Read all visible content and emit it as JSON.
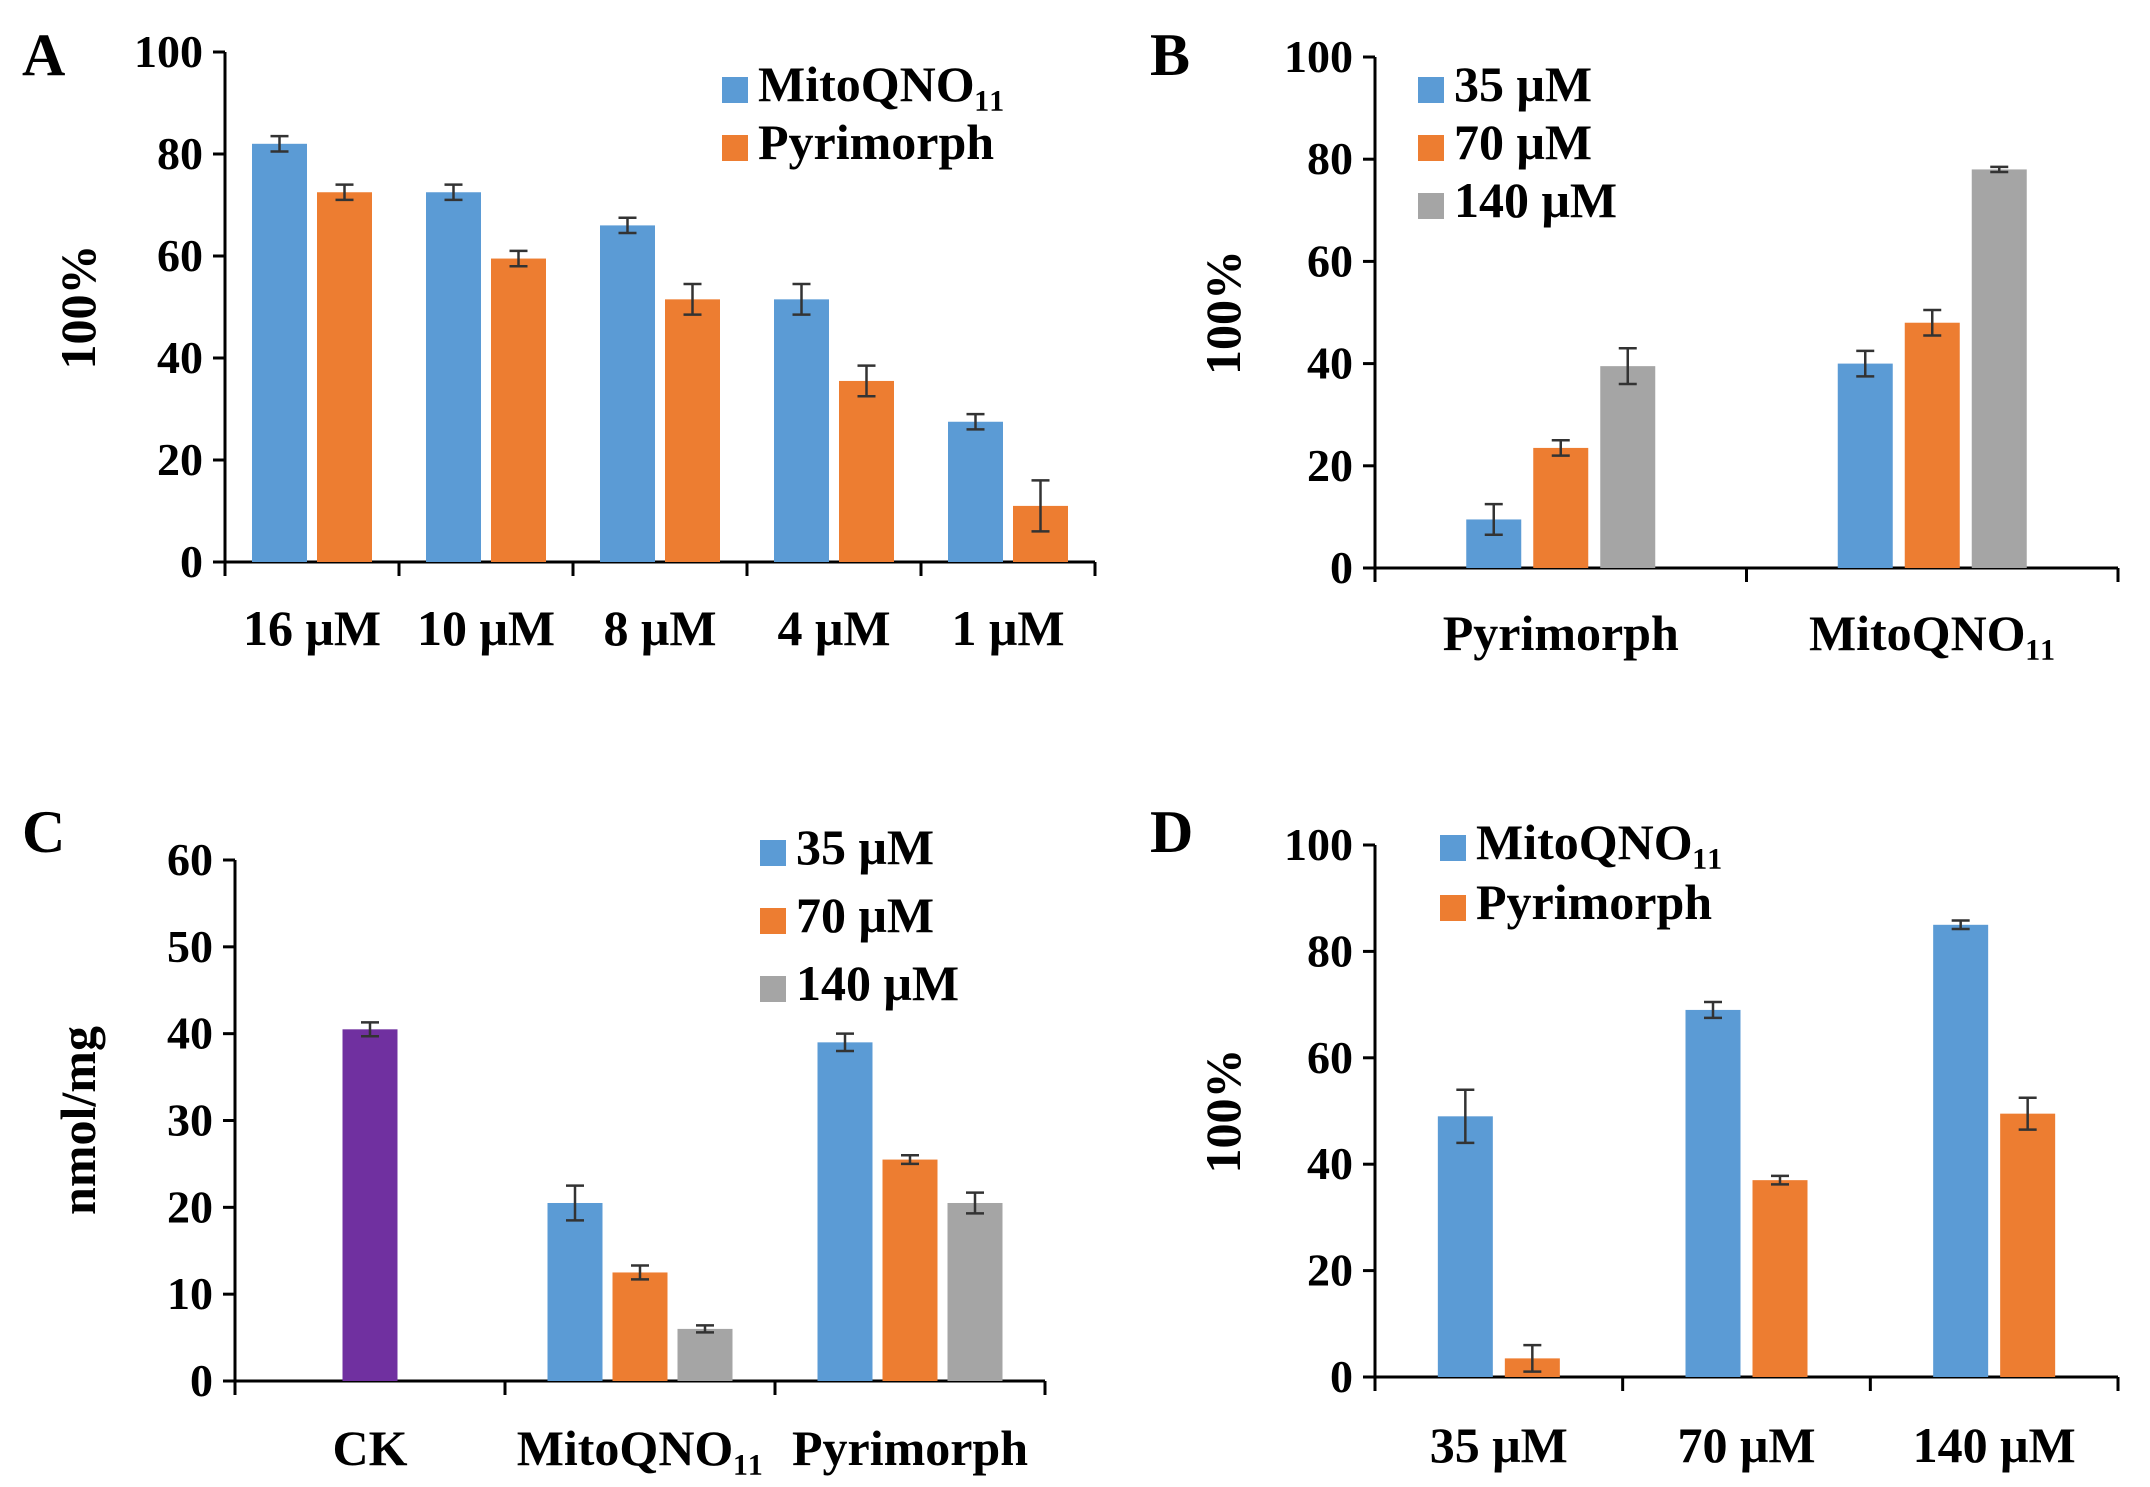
{
  "figure": {
    "colors": {
      "blue": "#5B9BD5",
      "orange": "#ED7D31",
      "gray": "#A5A5A5",
      "purple": "#7030A0",
      "axis": "#000000",
      "error_bar": "#333333"
    }
  },
  "chart_data": [
    {
      "panel": "A",
      "type": "bar",
      "ylabel": "100%",
      "xlabel": "",
      "ylim": [
        0,
        100
      ],
      "yticks": [
        "0",
        "20",
        "40",
        "60",
        "80",
        "100"
      ],
      "categories": [
        "16 μM",
        "10 μM",
        "8 μM",
        "4 μM",
        "1 μM"
      ],
      "legend_position": "top-right",
      "series": [
        {
          "name": "MitoQNO₁₁",
          "color": "#5B9BD5",
          "values": [
            82,
            72.5,
            66,
            51.5,
            27.5
          ],
          "errors": [
            1.5,
            1.5,
            1.5,
            3,
            1.5
          ]
        },
        {
          "name": "Pyrimorph",
          "color": "#ED7D31",
          "values": [
            72.5,
            59.5,
            51.5,
            35.5,
            11
          ],
          "errors": [
            1.5,
            1.5,
            3,
            3,
            5
          ]
        }
      ]
    },
    {
      "panel": "B",
      "type": "bar",
      "ylabel": "100%",
      "xlabel": "",
      "ylim": [
        0,
        100
      ],
      "yticks": [
        "0",
        "20",
        "40",
        "60",
        "80",
        "100"
      ],
      "categories": [
        "Pyrimorph",
        "MitoQNO₁₁"
      ],
      "legend_position": "top-left",
      "series": [
        {
          "name": "35 μM",
          "color": "#5B9BD5",
          "values": [
            9.5,
            40
          ],
          "errors": [
            3,
            2.5
          ]
        },
        {
          "name": "70 μM",
          "color": "#ED7D31",
          "values": [
            23.5,
            48
          ],
          "errors": [
            1.5,
            2.5
          ]
        },
        {
          "name": "140 μM",
          "color": "#A5A5A5",
          "values": [
            39.5,
            78
          ],
          "errors": [
            3.5,
            0.5
          ]
        }
      ]
    },
    {
      "panel": "C",
      "type": "bar",
      "ylabel": "nmol/mg",
      "xlabel": "",
      "ylim": [
        0,
        60
      ],
      "yticks": [
        "0",
        "10",
        "20",
        "30",
        "40",
        "50",
        "60"
      ],
      "categories": [
        "CK",
        "MitoQNO₁₁",
        "Pyrimorph"
      ],
      "legend_position": "top-right",
      "control": {
        "name": "CK",
        "color": "#7030A0",
        "value": 40.5,
        "error": 0.8
      },
      "series": [
        {
          "name": "35 μM",
          "color": "#5B9BD5",
          "values": [
            null,
            20.5,
            39
          ],
          "errors": [
            null,
            2,
            1
          ]
        },
        {
          "name": "70 μM",
          "color": "#ED7D31",
          "values": [
            null,
            12.5,
            25.5
          ],
          "errors": [
            null,
            0.8,
            0.5
          ]
        },
        {
          "name": "140 μM",
          "color": "#A5A5A5",
          "values": [
            null,
            6,
            20.5
          ],
          "errors": [
            null,
            0.4,
            1.2
          ]
        }
      ]
    },
    {
      "panel": "D",
      "type": "bar",
      "ylabel": "100%",
      "xlabel": "",
      "ylim": [
        0,
        100
      ],
      "yticks": [
        "0",
        "20",
        "40",
        "60",
        "80",
        "100"
      ],
      "categories": [
        "35 μM",
        "70 μM",
        "140 μM"
      ],
      "legend_position": "top-left",
      "series": [
        {
          "name": "MitoQNO₁₁",
          "color": "#5B9BD5",
          "values": [
            49,
            69,
            85
          ],
          "errors": [
            5,
            1.5,
            0.8
          ]
        },
        {
          "name": "Pyrimorph",
          "color": "#ED7D31",
          "values": [
            3.5,
            37,
            49.5
          ],
          "errors": [
            2.5,
            0.8,
            3
          ]
        }
      ]
    }
  ]
}
